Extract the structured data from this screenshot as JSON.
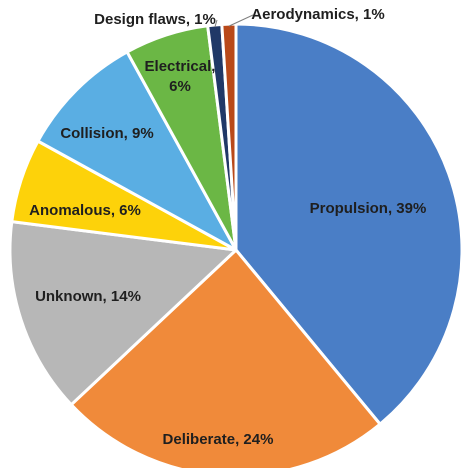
{
  "chart_data": {
    "type": "pie",
    "title": "",
    "slices": [
      {
        "name": "Propulsion",
        "value": 39,
        "label": "Propulsion, 39%",
        "color": "#4a7ec6"
      },
      {
        "name": "Deliberate",
        "value": 24,
        "label": "Deliberate, 24%",
        "color": "#f08a3a"
      },
      {
        "name": "Unknown",
        "value": 14,
        "label": "Unknown, 14%",
        "color": "#b7b7b7"
      },
      {
        "name": "Anomalous",
        "value": 6,
        "label": "Anomalous, 6%",
        "color": "#fdd20a"
      },
      {
        "name": "Collision",
        "value": 9,
        "label": "Collision, 9%",
        "color": "#5aaee3"
      },
      {
        "name": "Electrical",
        "value": 6,
        "label": "Electrical,\n6%",
        "color": "#6bb745"
      },
      {
        "name": "Design flaws",
        "value": 1,
        "label": "Design flaws, 1%",
        "color": "#203867"
      },
      {
        "name": "Aerodynamics",
        "value": 1,
        "label": "Aerodynamics, 1%",
        "color": "#b9491a"
      }
    ],
    "legend": "none"
  }
}
